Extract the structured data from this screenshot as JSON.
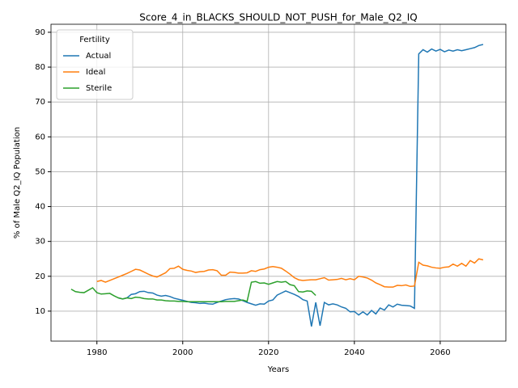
{
  "chart_data": {
    "type": "line",
    "title": "Score_4_in_BLACKS_SHOULD_NOT_PUSH_for_Male_Q2_IQ",
    "x_label": "Years",
    "y_label": "% of Male Q2_IQ Population",
    "legend_title": "Fertility",
    "legend_position": "upper left",
    "grid": true,
    "xlim": [
      1969.3,
      2075.3
    ],
    "ylim": [
      1.4,
      92.3
    ],
    "xticks": [
      1980,
      2000,
      2020,
      2040,
      2060
    ],
    "yticks": [
      10,
      20,
      30,
      40,
      50,
      60,
      70,
      80,
      90
    ],
    "series": [
      {
        "name": "Actual",
        "color": "#1f77b4",
        "x": [
          1985,
          1986,
          1987,
          1988,
          1989,
          1990,
          1991,
          1992,
          1993,
          1994,
          1995,
          1996,
          1997,
          1998,
          1999,
          2000,
          2001,
          2002,
          2003,
          2004,
          2005,
          2006,
          2007,
          2008,
          2009,
          2010,
          2011,
          2012,
          2013,
          2014,
          2015,
          2016,
          2017,
          2018,
          2019,
          2020,
          2021,
          2022,
          2023,
          2024,
          2025,
          2026,
          2027,
          2028,
          2029,
          2030,
          2031,
          2032,
          2033,
          2034,
          2035,
          2036,
          2037,
          2038,
          2039,
          2040,
          2041,
          2042,
          2043,
          2044,
          2045,
          2046,
          2047,
          2048,
          2049,
          2050,
          2051,
          2052,
          2053,
          2054,
          2055,
          2056,
          2057,
          2058,
          2059,
          2060,
          2061,
          2062,
          2063,
          2064,
          2065,
          2066,
          2067,
          2068,
          2069,
          2070
        ],
        "values": [
          13.8,
          13.5,
          13.8,
          14.8,
          15.0,
          15.6,
          15.7,
          15.3,
          15.2,
          14.6,
          14.3,
          14.5,
          14.2,
          13.7,
          13.4,
          13.1,
          12.8,
          12.5,
          12.4,
          12.2,
          12.3,
          12.1,
          12.0,
          12.5,
          12.9,
          13.3,
          13.5,
          13.6,
          13.5,
          13.0,
          12.5,
          12.1,
          11.7,
          12.1,
          12.0,
          12.9,
          13.2,
          14.6,
          15.2,
          15.8,
          15.3,
          14.8,
          14.2,
          13.3,
          12.9,
          5.6,
          12.5,
          5.8,
          12.5,
          11.8,
          12.1,
          11.8,
          11.2,
          10.8,
          9.8,
          9.9,
          8.9,
          9.8,
          8.9,
          10.2,
          9.2,
          10.9,
          10.3,
          11.8,
          11.2,
          12.0,
          11.7,
          11.6,
          11.5,
          10.8,
          83.8,
          85.0,
          84.3,
          85.2,
          84.6,
          85.1,
          84.4,
          84.9,
          84.6,
          85.0,
          84.7,
          85.0,
          85.3,
          85.6,
          86.2,
          86.5
        ]
      },
      {
        "name": "Ideal",
        "color": "#ff7f0e",
        "x": [
          1980,
          1981,
          1982,
          1983,
          1984,
          1985,
          1986,
          1987,
          1988,
          1989,
          1990,
          1991,
          1992,
          1993,
          1994,
          1995,
          1996,
          1997,
          1998,
          1999,
          2000,
          2001,
          2002,
          2003,
          2004,
          2005,
          2006,
          2007,
          2008,
          2009,
          2010,
          2011,
          2012,
          2013,
          2014,
          2015,
          2016,
          2017,
          2018,
          2019,
          2020,
          2021,
          2022,
          2023,
          2024,
          2025,
          2026,
          2027,
          2028,
          2029,
          2030,
          2031,
          2032,
          2033,
          2034,
          2035,
          2036,
          2037,
          2038,
          2039,
          2040,
          2041,
          2042,
          2043,
          2044,
          2045,
          2046,
          2047,
          2048,
          2049,
          2050,
          2051,
          2052,
          2053,
          2054,
          2055,
          2056,
          2057,
          2058,
          2059,
          2060,
          2061,
          2062,
          2063,
          2064,
          2065,
          2066,
          2067,
          2068,
          2069,
          2070
        ],
        "values": [
          18.5,
          18.8,
          18.3,
          18.8,
          19.3,
          19.8,
          20.3,
          20.8,
          21.4,
          22.0,
          21.8,
          21.2,
          20.6,
          20.1,
          19.8,
          20.4,
          21.0,
          22.2,
          22.3,
          22.9,
          22.0,
          21.7,
          21.5,
          21.1,
          21.3,
          21.4,
          21.8,
          21.9,
          21.6,
          20.3,
          20.3,
          21.2,
          21.1,
          20.9,
          20.9,
          21.0,
          21.6,
          21.4,
          21.9,
          22.1,
          22.6,
          22.8,
          22.6,
          22.3,
          21.5,
          20.6,
          19.6,
          19.0,
          18.8,
          18.9,
          19.0,
          19.0,
          19.3,
          19.6,
          18.9,
          19.0,
          19.1,
          19.4,
          19.0,
          19.3,
          19.0,
          20.0,
          19.8,
          19.5,
          18.9,
          18.1,
          17.6,
          17.0,
          16.9,
          16.9,
          17.4,
          17.3,
          17.5,
          17.1,
          17.2,
          24.0,
          23.2,
          23.0,
          22.6,
          22.4,
          22.3,
          22.6,
          22.7,
          23.5,
          22.9,
          23.7,
          22.9,
          24.5,
          23.8,
          25.0,
          24.7
        ]
      },
      {
        "name": "Sterile",
        "color": "#2ca02c",
        "x": [
          1974,
          1975,
          1976,
          1977,
          1978,
          1979,
          1980,
          1981,
          1982,
          1983,
          1984,
          1985,
          1986,
          1987,
          1988,
          1989,
          1990,
          1991,
          1992,
          1993,
          1994,
          1995,
          1996,
          1997,
          1998,
          1999,
          2000,
          2001,
          2002,
          2003,
          2004,
          2005,
          2006,
          2007,
          2008,
          2009,
          2010,
          2011,
          2012,
          2013,
          2014,
          2015,
          2016,
          2017,
          2018,
          2019,
          2020,
          2021,
          2022,
          2023,
          2024,
          2025,
          2026,
          2027,
          2028,
          2029,
          2030,
          2031
        ],
        "values": [
          16.3,
          15.6,
          15.4,
          15.3,
          16.0,
          16.7,
          15.3,
          14.9,
          15.0,
          15.1,
          14.4,
          13.8,
          13.5,
          13.8,
          13.6,
          14.0,
          13.9,
          13.6,
          13.5,
          13.5,
          13.2,
          13.2,
          13.0,
          12.9,
          12.9,
          12.8,
          12.8,
          12.7,
          12.7,
          12.7,
          12.7,
          12.7,
          12.7,
          12.7,
          12.7,
          12.7,
          12.8,
          12.8,
          12.8,
          13.0,
          13.2,
          12.8,
          18.3,
          18.5,
          18.0,
          18.1,
          17.7,
          18.1,
          18.5,
          18.3,
          18.5,
          17.6,
          17.3,
          15.6,
          15.5,
          15.8,
          15.7,
          14.5
        ]
      }
    ]
  }
}
